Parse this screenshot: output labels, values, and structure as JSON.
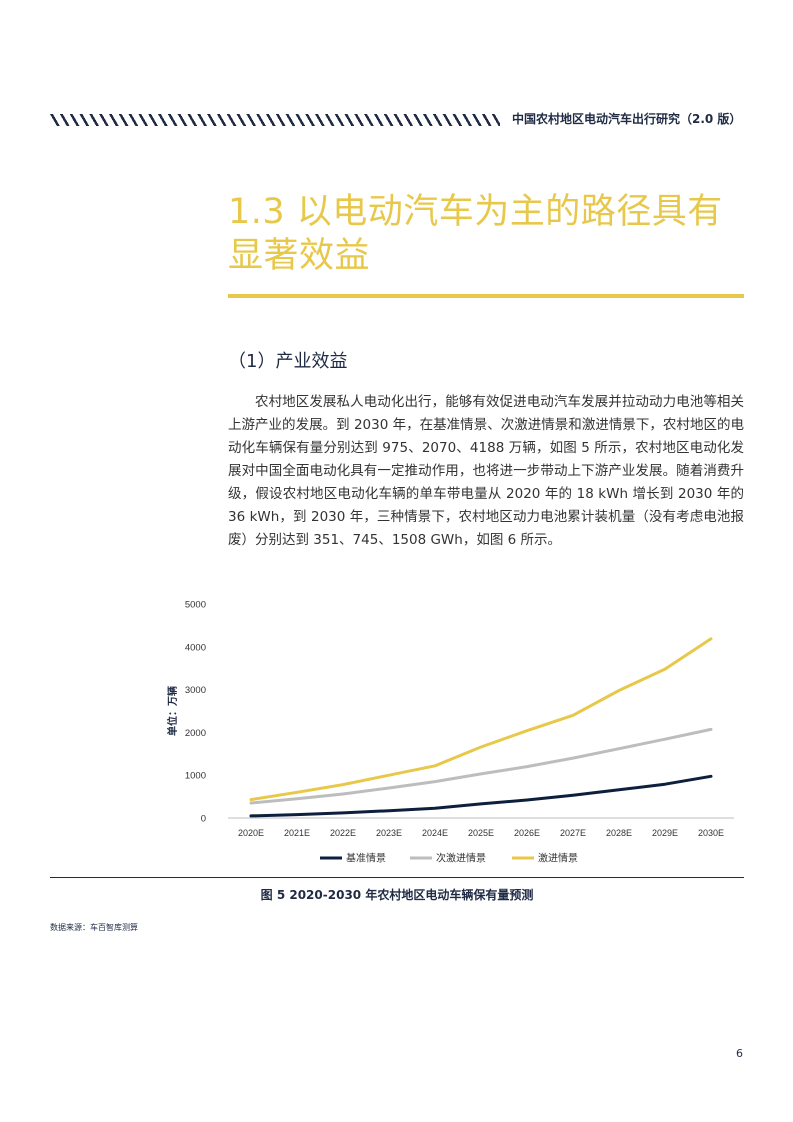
{
  "header": {
    "running_title": "中国农村地区电动汽车出行研究（2.0 版）"
  },
  "section": {
    "title": "1.3 以电动汽车为主的路径具有显著效益"
  },
  "subsection": {
    "title": "（1）产业效益"
  },
  "body": {
    "paragraph": "农村地区发展私人电动化出行，能够有效促进电动汽车发展并拉动动力电池等相关上游产业的发展。到 2030 年，在基准情景、次激进情景和激进情景下，农村地区的电动化车辆保有量分别达到 975、2070、4188 万辆，如图 5 所示，农村地区电动化发展对中国全面电动化具有一定推动作用，也将进一步带动上下游产业发展。随着消费升级，假设农村地区电动化车辆的单车带电量从 2020 年的 18 kWh 增长到 2030 年的 36 kWh，到 2030 年，三种情景下，农村地区动力电池累计装机量（没有考虑电池报废）分别达到 351、745、1508 GWh，如图 6 所示。"
  },
  "chart_data": {
    "type": "line",
    "categories": [
      "2020E",
      "2021E",
      "2022E",
      "2023E",
      "2024E",
      "2025E",
      "2026E",
      "2027E",
      "2028E",
      "2029E",
      "2030E"
    ],
    "ylabel": "单位：万辆",
    "ylim": [
      0,
      5000
    ],
    "yticks": [
      0,
      1000,
      2000,
      3000,
      4000,
      5000
    ],
    "grid": false,
    "legend_position": "bottom",
    "series": [
      {
        "name": "基准情景",
        "color": "#0d1f3c",
        "values": [
          50,
          80,
          120,
          170,
          230,
          330,
          420,
          530,
          660,
          790,
          975
        ]
      },
      {
        "name": "次激进情景",
        "color": "#bdbdbd",
        "values": [
          350,
          450,
          560,
          700,
          850,
          1030,
          1200,
          1400,
          1620,
          1840,
          2070
        ]
      },
      {
        "name": "激进情景",
        "color": "#e8c84a",
        "values": [
          430,
          600,
          780,
          1000,
          1220,
          1660,
          2040,
          2400,
          2980,
          3480,
          4188
        ]
      }
    ]
  },
  "figure": {
    "caption": "图 5 2020-2030 年农村地区电动车辆保有量预测",
    "source": "数据来源：车百智库测算"
  },
  "page": {
    "number": "6"
  }
}
